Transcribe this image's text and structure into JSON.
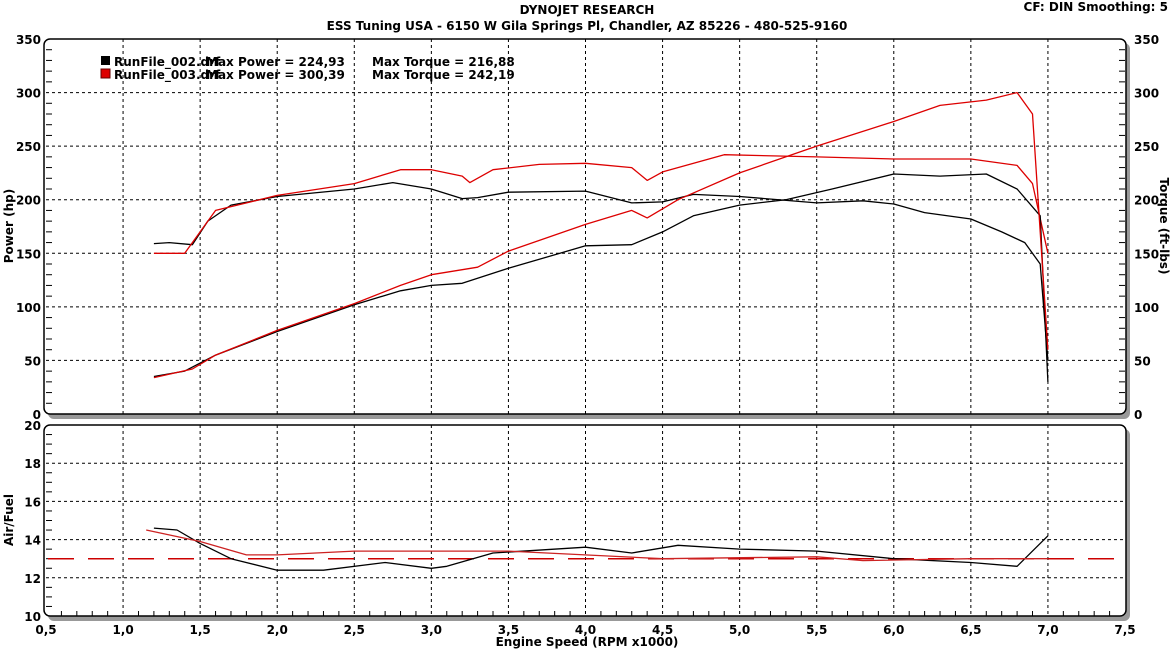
{
  "header": {
    "title": "DYNOJET RESEARCH",
    "subtitle": "ESS Tuning USA - 6150 W Gila Springs Pl, Chandler, AZ 85226 - 480-525-9160",
    "settings": "CF: DIN  Smoothing: 5"
  },
  "chart_data": [
    {
      "type": "line",
      "panel": "power-torque",
      "xlabel": "Engine Speed (RPM x1000)",
      "ylabel": "Power (hp)",
      "y2label": "Torque (ft-lbs)",
      "xlim": [
        0.5,
        7.5
      ],
      "ylim": [
        0,
        350
      ],
      "y2lim": [
        0,
        350
      ],
      "x_ticks": [
        "0,5",
        "1,0",
        "1,5",
        "2,0",
        "2,5",
        "3,0",
        "3,5",
        "4,0",
        "4,5",
        "5,0",
        "5,5",
        "6,0",
        "6,5",
        "7,0",
        "7,5"
      ],
      "y_ticks": [
        "0",
        "50",
        "100",
        "150",
        "200",
        "250",
        "300",
        "350"
      ],
      "grid": true,
      "legend_placement": "top-left",
      "legend": [
        {
          "file": "RunFile_002.drf",
          "power_text": "Max Power = 224,93",
          "torque_text": "Max Torque = 216,88",
          "color": "#000000"
        },
        {
          "file": "RunFile_003.drf",
          "power_text": "Max Power = 300,39",
          "torque_text": "Max Torque = 242,19",
          "color": "#dd0000"
        }
      ],
      "series": [
        {
          "run": "RunFile_002.drf",
          "measure": "torque",
          "color": "#000000",
          "x": [
            1.2,
            1.3,
            1.45,
            1.55,
            1.7,
            2.0,
            2.5,
            2.75,
            3.0,
            3.2,
            3.3,
            3.5,
            4.0,
            4.3,
            4.5,
            4.7,
            5.0,
            5.5,
            5.8,
            6.0,
            6.2,
            6.5,
            6.7,
            6.85,
            6.95,
            7.0
          ],
          "y": [
            159,
            160,
            158,
            180,
            195,
            203,
            210,
            216,
            210,
            201,
            202,
            207,
            208,
            197,
            198,
            205,
            203,
            197,
            199,
            196,
            188,
            182,
            170,
            160,
            140,
            50
          ]
        },
        {
          "run": "RunFile_003.drf",
          "measure": "torque",
          "color": "#dd0000",
          "x": [
            1.2,
            1.4,
            1.6,
            2.0,
            2.5,
            2.8,
            3.0,
            3.2,
            3.25,
            3.4,
            3.7,
            4.0,
            4.3,
            4.4,
            4.5,
            4.9,
            5.5,
            6.0,
            6.5,
            6.8,
            6.9,
            7.0
          ],
          "y": [
            150,
            150,
            190,
            204,
            215,
            228,
            228,
            222,
            216,
            228,
            233,
            234,
            230,
            218,
            226,
            242,
            240,
            238,
            238,
            232,
            215,
            150
          ]
        },
        {
          "run": "RunFile_002.drf",
          "measure": "power",
          "color": "#000000",
          "x": [
            1.2,
            1.4,
            1.6,
            2.0,
            2.5,
            2.8,
            3.0,
            3.2,
            3.5,
            4.0,
            4.3,
            4.5,
            4.7,
            5.0,
            5.3,
            5.6,
            6.0,
            6.3,
            6.6,
            6.8,
            6.95,
            7.0
          ],
          "y": [
            35,
            40,
            55,
            77,
            102,
            115,
            120,
            122,
            136,
            157,
            158,
            170,
            185,
            195,
            200,
            210,
            224,
            222,
            224,
            210,
            185,
            30
          ]
        },
        {
          "run": "RunFile_003.drf",
          "measure": "power",
          "color": "#dd0000",
          "x": [
            1.2,
            1.45,
            1.6,
            2.0,
            2.5,
            2.8,
            3.0,
            3.3,
            3.5,
            4.0,
            4.3,
            4.4,
            4.6,
            5.0,
            5.5,
            6.0,
            6.3,
            6.6,
            6.8,
            6.9,
            7.0
          ],
          "y": [
            34,
            42,
            55,
            78,
            103,
            120,
            130,
            137,
            152,
            177,
            190,
            183,
            200,
            225,
            250,
            273,
            288,
            293,
            300,
            280,
            60
          ]
        }
      ]
    },
    {
      "type": "line",
      "panel": "air-fuel",
      "xlabel": "Engine Speed (RPM x1000)",
      "ylabel": "Air/Fuel",
      "xlim": [
        0.5,
        7.5
      ],
      "ylim": [
        10,
        20
      ],
      "y_ticks": [
        "10",
        "12",
        "14",
        "16",
        "18",
        "20"
      ],
      "grid": true,
      "reference_line": {
        "y": 13.0,
        "color": "#cc0000",
        "style": "dashed"
      },
      "series": [
        {
          "run": "RunFile_002.drf",
          "color": "#000000",
          "x": [
            1.2,
            1.35,
            1.5,
            1.7,
            2.0,
            2.3,
            2.7,
            3.0,
            3.1,
            3.4,
            4.0,
            4.3,
            4.6,
            5.0,
            5.5,
            6.0,
            6.5,
            6.8,
            7.0
          ],
          "y": [
            14.6,
            14.5,
            13.8,
            13.0,
            12.4,
            12.4,
            12.8,
            12.5,
            12.6,
            13.3,
            13.6,
            13.3,
            13.7,
            13.5,
            13.4,
            13.0,
            12.8,
            12.6,
            14.2
          ]
        },
        {
          "run": "RunFile_003.drf",
          "color": "#cc2222",
          "x": [
            1.15,
            1.5,
            1.8,
            2.0,
            2.5,
            3.5,
            4.5,
            5.5,
            5.8,
            6.5,
            7.0
          ],
          "y": [
            14.5,
            13.9,
            13.2,
            13.2,
            13.4,
            13.4,
            13.0,
            13.1,
            12.9,
            13.0,
            13.0
          ]
        }
      ]
    }
  ]
}
